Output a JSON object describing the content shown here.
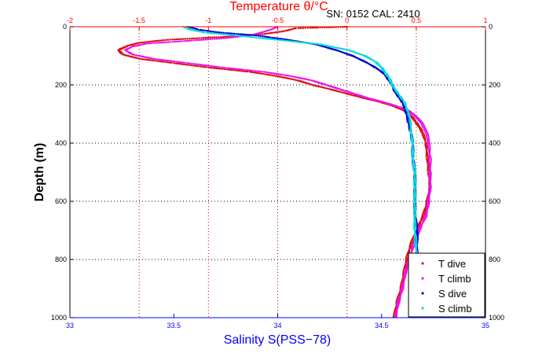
{
  "chart_data": {
    "type": "scatter",
    "title": "Temperature θ/°C",
    "info": "SN: 0152  CAL: 2410",
    "xlabel_bottom": "Salinity S(PSS−78)",
    "ylabel": "Depth (m)",
    "x_bottom_lim": [
      33,
      35
    ],
    "x_top_lim": [
      -2,
      1
    ],
    "y_lim": [
      0,
      1000
    ],
    "y_reversed": true,
    "x_bottom_ticks": [
      "33",
      "33.5",
      "34",
      "34.5",
      "35"
    ],
    "x_top_ticks": [
      "-2",
      "-1.5",
      "-1",
      "-0.5",
      "0",
      "0.5",
      "1"
    ],
    "y_ticks": [
      "0",
      "200",
      "400",
      "600",
      "800",
      "1000"
    ],
    "grid": true,
    "legend_position": "bottom-right",
    "colors": {
      "axis_bottom": "#0000ff",
      "axis_top": "#ff0000",
      "grid_y": "#000000",
      "grid_x": "#cc0000"
    },
    "series": [
      {
        "name": "T dive",
        "axis": "top",
        "color": "#dd1111",
        "points": [
          [
            0.0,
            0
          ],
          [
            -0.37,
            5
          ],
          [
            -0.45,
            15
          ],
          [
            -0.6,
            25
          ],
          [
            -0.9,
            35
          ],
          [
            -1.3,
            45
          ],
          [
            -1.5,
            55
          ],
          [
            -1.58,
            65
          ],
          [
            -1.65,
            80
          ],
          [
            -1.62,
            95
          ],
          [
            -1.5,
            110
          ],
          [
            -1.25,
            125
          ],
          [
            -1.0,
            140
          ],
          [
            -0.7,
            155
          ],
          [
            -0.5,
            170
          ],
          [
            -0.35,
            185
          ],
          [
            -0.25,
            200
          ],
          [
            -0.12,
            215
          ],
          [
            0.0,
            230
          ],
          [
            0.12,
            245
          ],
          [
            0.25,
            260
          ],
          [
            0.35,
            275
          ],
          [
            0.42,
            290
          ],
          [
            0.47,
            310
          ],
          [
            0.5,
            330
          ],
          [
            0.53,
            350
          ],
          [
            0.55,
            370
          ],
          [
            0.57,
            400
          ],
          [
            0.58,
            450
          ],
          [
            0.59,
            500
          ],
          [
            0.6,
            550
          ],
          [
            0.58,
            600
          ],
          [
            0.55,
            650
          ],
          [
            0.5,
            700
          ],
          [
            0.46,
            750
          ],
          [
            0.43,
            800
          ],
          [
            0.41,
            850
          ],
          [
            0.39,
            900
          ],
          [
            0.36,
            950
          ],
          [
            0.34,
            1000
          ]
        ]
      },
      {
        "name": "T climb",
        "axis": "top",
        "color": "#ee11ee",
        "points": [
          [
            -0.5,
            0
          ],
          [
            -0.55,
            10
          ],
          [
            -0.62,
            20
          ],
          [
            -0.7,
            30
          ],
          [
            -0.9,
            40
          ],
          [
            -1.2,
            50
          ],
          [
            -1.45,
            58
          ],
          [
            -1.55,
            68
          ],
          [
            -1.6,
            80
          ],
          [
            -1.55,
            95
          ],
          [
            -1.4,
            110
          ],
          [
            -1.15,
            125
          ],
          [
            -0.9,
            140
          ],
          [
            -0.6,
            155
          ],
          [
            -0.4,
            170
          ],
          [
            -0.25,
            185
          ],
          [
            -0.15,
            200
          ],
          [
            -0.05,
            215
          ],
          [
            0.05,
            230
          ],
          [
            0.15,
            245
          ],
          [
            0.27,
            260
          ],
          [
            0.37,
            275
          ],
          [
            0.45,
            290
          ],
          [
            0.5,
            310
          ],
          [
            0.54,
            330
          ],
          [
            0.56,
            350
          ],
          [
            0.58,
            370
          ],
          [
            0.59,
            400
          ],
          [
            0.6,
            450
          ],
          [
            0.6,
            500
          ],
          [
            0.6,
            550
          ],
          [
            0.59,
            600
          ],
          [
            0.57,
            650
          ],
          [
            0.52,
            700
          ],
          [
            0.48,
            750
          ],
          [
            0.45,
            800
          ],
          [
            0.42,
            850
          ],
          [
            0.4,
            900
          ],
          [
            0.37,
            950
          ],
          [
            0.35,
            1000
          ]
        ]
      },
      {
        "name": "S dive",
        "axis": "bottom",
        "color": "#0000cc",
        "points": [
          [
            33.57,
            0
          ],
          [
            33.62,
            10
          ],
          [
            33.72,
            20
          ],
          [
            33.9,
            30
          ],
          [
            34.05,
            45
          ],
          [
            34.18,
            60
          ],
          [
            34.28,
            80
          ],
          [
            34.36,
            100
          ],
          [
            34.42,
            120
          ],
          [
            34.47,
            140
          ],
          [
            34.51,
            160
          ],
          [
            34.53,
            180
          ],
          [
            34.55,
            200
          ],
          [
            34.56,
            220
          ],
          [
            34.58,
            240
          ],
          [
            34.6,
            260
          ],
          [
            34.61,
            280
          ],
          [
            34.62,
            300
          ],
          [
            34.63,
            330
          ],
          [
            34.64,
            360
          ],
          [
            34.65,
            400
          ],
          [
            34.65,
            450
          ],
          [
            34.66,
            500
          ],
          [
            34.66,
            550
          ],
          [
            34.66,
            600
          ],
          [
            34.66,
            650
          ],
          [
            34.67,
            700
          ],
          [
            34.67,
            800
          ],
          [
            34.67,
            900
          ],
          [
            34.67,
            1000
          ]
        ]
      },
      {
        "name": "S climb",
        "axis": "bottom",
        "color": "#00dddd",
        "points": [
          [
            33.55,
            0
          ],
          [
            33.58,
            10
          ],
          [
            33.65,
            20
          ],
          [
            33.8,
            30
          ],
          [
            34.0,
            45
          ],
          [
            34.2,
            60
          ],
          [
            34.34,
            80
          ],
          [
            34.42,
            100
          ],
          [
            34.47,
            120
          ],
          [
            34.5,
            140
          ],
          [
            34.52,
            160
          ],
          [
            34.54,
            180
          ],
          [
            34.55,
            200
          ],
          [
            34.57,
            220
          ],
          [
            34.59,
            240
          ],
          [
            34.61,
            260
          ],
          [
            34.62,
            280
          ],
          [
            34.63,
            300
          ],
          [
            34.64,
            330
          ],
          [
            34.64,
            360
          ],
          [
            34.65,
            400
          ],
          [
            34.65,
            450
          ],
          [
            34.66,
            500
          ],
          [
            34.66,
            550
          ],
          [
            34.66,
            600
          ],
          [
            34.66,
            650
          ],
          [
            34.66,
            700
          ],
          [
            34.67,
            800
          ],
          [
            34.67,
            900
          ],
          [
            34.67,
            1000
          ]
        ]
      }
    ]
  }
}
